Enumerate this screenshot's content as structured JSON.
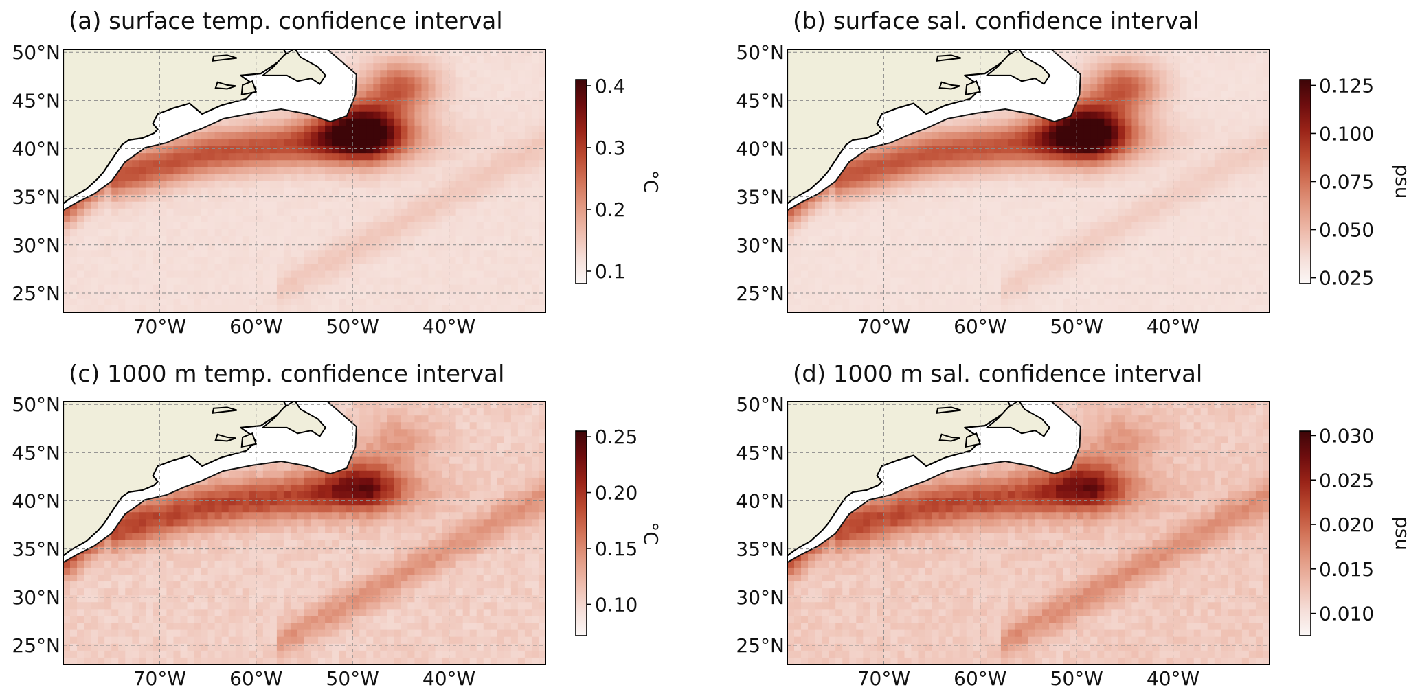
{
  "figure": {
    "colormap": [
      "#fbf7f6",
      "#f5ded8",
      "#eebcad",
      "#e29a83",
      "#d27358",
      "#bb4a31",
      "#9a2418",
      "#6e0d0e",
      "#3d0508"
    ],
    "land_color": "#f0eedb",
    "gulf_stream_color": "#c8583d"
  },
  "chart_data": [
    {
      "id": "a",
      "type": "heatmap",
      "title": "(a) surface temp. confidence interval",
      "lat_ticks": [
        "50°N",
        "45°N",
        "40°N",
        "35°N",
        "30°N",
        "25°N"
      ],
      "lon_ticks": [
        "70°W",
        "60°W",
        "50°W",
        "40°W"
      ],
      "colorbar": {
        "label": "°C",
        "vmin": 0.08,
        "vmax": 0.41,
        "ticks": [
          0.1,
          0.2,
          0.3,
          0.4
        ],
        "tick_labels": [
          "0.1",
          "0.2",
          "0.3",
          "0.4"
        ]
      },
      "field": {
        "base": 0.12,
        "gulf_stream_peak": 0.28,
        "north_peak": 0.4,
        "band_peak": 0.16
      }
    },
    {
      "id": "b",
      "type": "heatmap",
      "title": "(b) surface sal. confidence interval",
      "lat_ticks": [
        "50°N",
        "45°N",
        "40°N",
        "35°N",
        "30°N",
        "25°N"
      ],
      "lon_ticks": [
        "70°W",
        "60°W",
        "50°W",
        "40°W"
      ],
      "colorbar": {
        "label": "psu",
        "vmin": 0.022,
        "vmax": 0.128,
        "ticks": [
          0.025,
          0.05,
          0.075,
          0.1,
          0.125
        ],
        "tick_labels": [
          "0.025",
          "0.050",
          "0.075",
          "0.100",
          "0.125"
        ]
      },
      "field": {
        "base": 0.034,
        "gulf_stream_peak": 0.085,
        "north_peak": 0.125,
        "band_peak": 0.045
      }
    },
    {
      "id": "c",
      "type": "heatmap",
      "title": "(c) 1000 m temp. confidence interval",
      "lat_ticks": [
        "50°N",
        "45°N",
        "40°N",
        "35°N",
        "30°N",
        "25°N"
      ],
      "lon_ticks": [
        "70°W",
        "60°W",
        "50°W",
        "40°W"
      ],
      "colorbar": {
        "label": "°C",
        "vmin": 0.072,
        "vmax": 0.255,
        "ticks": [
          0.1,
          0.15,
          0.2,
          0.25
        ],
        "tick_labels": [
          "0.10",
          "0.15",
          "0.20",
          "0.25"
        ]
      },
      "field": {
        "base": 0.105,
        "gulf_stream_peak": 0.19,
        "north_peak": 0.17,
        "band_peak": 0.16
      }
    },
    {
      "id": "d",
      "type": "heatmap",
      "title": "(d) 1000 m sal. confidence interval",
      "lat_ticks": [
        "50°N",
        "45°N",
        "40°N",
        "35°N",
        "30°N",
        "25°N"
      ],
      "lon_ticks": [
        "70°W",
        "60°W",
        "50°W",
        "40°W"
      ],
      "colorbar": {
        "label": "psu",
        "vmin": 0.0075,
        "vmax": 0.0305,
        "ticks": [
          0.01,
          0.015,
          0.02,
          0.025,
          0.03
        ],
        "tick_labels": [
          "0.010",
          "0.015",
          "0.020",
          "0.025",
          "0.030"
        ]
      },
      "field": {
        "base": 0.012,
        "gulf_stream_peak": 0.022,
        "north_peak": 0.02,
        "band_peak": 0.019
      }
    }
  ]
}
